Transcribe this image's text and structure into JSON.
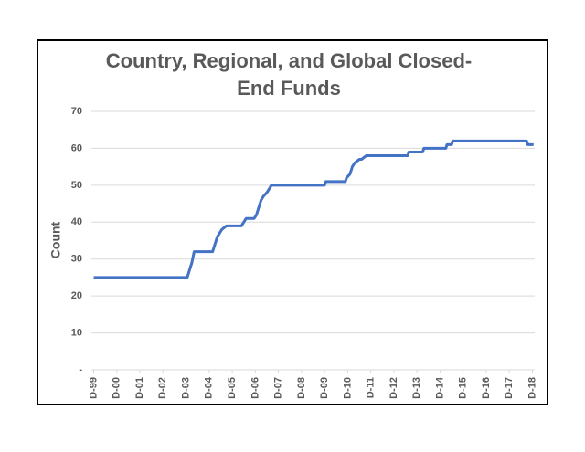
{
  "chart_data": {
    "type": "line",
    "title": "Country, Regional, and Global Closed-End Funds",
    "y_label": "Count",
    "x": [
      0,
      4.05,
      4.15,
      4.25,
      4.35,
      5.15,
      5.25,
      5.35,
      5.45,
      5.55,
      5.75,
      6.4,
      6.5,
      6.6,
      6.95,
      7.05,
      7.15,
      7.25,
      7.35,
      7.5,
      7.6,
      7.7,
      10.0,
      10.05,
      10.9,
      10.95,
      11.1,
      11.2,
      11.3,
      11.5,
      11.6,
      11.8,
      13.6,
      13.65,
      14.25,
      14.3,
      15.25,
      15.3,
      15.5,
      15.55,
      18.75,
      18.8,
      19.05
    ],
    "series": [
      {
        "color": "#4472c4",
        "values": [
          25,
          25,
          27,
          29,
          32,
          32,
          34,
          36,
          37,
          38,
          39,
          39,
          40,
          41,
          41,
          42,
          44,
          46,
          47,
          48,
          49,
          50,
          50,
          51,
          51,
          52,
          53,
          55,
          56,
          57,
          57,
          58,
          58,
          59,
          59,
          60,
          60,
          61,
          61,
          62,
          62,
          61,
          61
        ]
      }
    ],
    "xlim": [
      -0.1,
      19.1
    ],
    "xticks": [
      {
        "value": 0,
        "label": "D-99"
      },
      {
        "value": 1,
        "label": "D-00"
      },
      {
        "value": 2,
        "label": "D-01"
      },
      {
        "value": 3,
        "label": "D-02"
      },
      {
        "value": 4,
        "label": "D-03"
      },
      {
        "value": 5,
        "label": "D-04"
      },
      {
        "value": 6,
        "label": "D-05"
      },
      {
        "value": 7,
        "label": "D-06"
      },
      {
        "value": 8,
        "label": "D-07"
      },
      {
        "value": 9,
        "label": "D-08"
      },
      {
        "value": 10,
        "label": "D-09"
      },
      {
        "value": 11,
        "label": "D-10"
      },
      {
        "value": 12,
        "label": "D-11"
      },
      {
        "value": 13,
        "label": "D-12"
      },
      {
        "value": 14,
        "label": "D-13"
      },
      {
        "value": 15,
        "label": "D-14"
      },
      {
        "value": 16,
        "label": "D-15"
      },
      {
        "value": 17,
        "label": "D-16"
      },
      {
        "value": 18,
        "label": "D-17"
      },
      {
        "value": 19,
        "label": "D-18"
      }
    ],
    "ylim": [
      0,
      70
    ],
    "yticks": [
      {
        "value": 0,
        "label": "-"
      },
      10,
      20,
      30,
      40,
      50,
      60,
      70
    ],
    "grid": true
  }
}
